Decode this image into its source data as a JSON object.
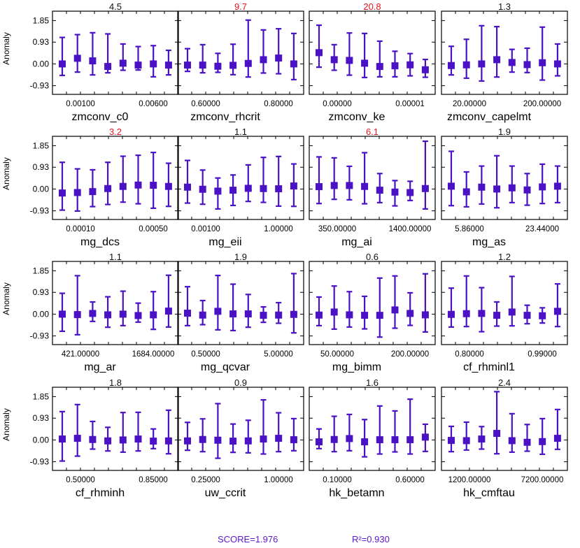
{
  "chart_data": {
    "type": "errorbar",
    "ylabel": "Anomaly",
    "y_ticks": [
      "1.85",
      "0.93",
      "0.00",
      "-0.93"
    ],
    "y_tick_values": [
      1.85,
      0.93,
      0.0,
      -0.93
    ],
    "ylim": [
      -1.3,
      2.25
    ],
    "grid": false,
    "marker_color": "#4a12c4",
    "highlight_color": "#e8141e",
    "normal_color": "#111111",
    "panels": [
      {
        "name": "zmconv_c0",
        "score": "4.5",
        "highlight": false,
        "x_ticks": [
          "0.00100",
          "0.00600"
        ],
        "points": [
          [
            0.0,
            -0.49,
            1.13
          ],
          [
            0.24,
            -0.35,
            1.25
          ],
          [
            0.13,
            -0.47,
            1.33
          ],
          [
            -0.11,
            -0.38,
            1.28
          ],
          [
            0.03,
            -0.27,
            0.85
          ],
          [
            -0.05,
            -0.26,
            0.74
          ],
          [
            0.0,
            -0.55,
            0.78
          ],
          [
            -0.05,
            -0.47,
            0.58
          ]
        ]
      },
      {
        "name": "zmconv_rhcrit",
        "score": "9.7",
        "highlight": true,
        "x_ticks": [
          "0.60000",
          "0.80000"
        ],
        "points": [
          [
            -0.05,
            -0.32,
            0.65
          ],
          [
            -0.05,
            -0.38,
            0.82
          ],
          [
            -0.1,
            -0.36,
            0.45
          ],
          [
            -0.06,
            -0.46,
            0.84
          ],
          [
            0.02,
            -0.56,
            1.87
          ],
          [
            0.18,
            -0.39,
            1.45
          ],
          [
            0.25,
            -0.42,
            1.5
          ],
          [
            0.0,
            -0.67,
            1.3
          ]
        ]
      },
      {
        "name": "zmconv_ke",
        "score": "20.8",
        "highlight": true,
        "x_ticks": [
          "0.00000",
          "0.00001"
        ],
        "points": [
          [
            0.48,
            -0.14,
            1.65
          ],
          [
            0.18,
            -0.27,
            0.82
          ],
          [
            0.15,
            -0.48,
            1.32
          ],
          [
            0.03,
            -0.58,
            1.3
          ],
          [
            -0.11,
            -0.55,
            0.97
          ],
          [
            -0.08,
            -0.55,
            0.54
          ],
          [
            -0.04,
            -0.51,
            0.44
          ],
          [
            -0.25,
            -0.57,
            0.19
          ]
        ]
      },
      {
        "name": "zmconv_capelmt",
        "score": "1.3",
        "highlight": false,
        "x_ticks": [
          "20.00000",
          "200.00000"
        ],
        "points": [
          [
            -0.07,
            -0.47,
            0.75
          ],
          [
            -0.04,
            -0.61,
            1.05
          ],
          [
            0.0,
            -0.73,
            1.63
          ],
          [
            0.18,
            -0.56,
            1.59
          ],
          [
            0.06,
            -0.35,
            0.62
          ],
          [
            -0.03,
            -0.37,
            0.67
          ],
          [
            0.05,
            -0.69,
            1.57
          ],
          [
            0.0,
            -0.51,
            0.85
          ]
        ]
      },
      {
        "name": "mg_dcs",
        "score": "3.2",
        "highlight": true,
        "x_ticks": [
          "0.00010",
          "0.00050"
        ],
        "points": [
          [
            -0.17,
            -0.9,
            1.14
          ],
          [
            -0.15,
            -0.94,
            0.86
          ],
          [
            -0.11,
            -0.75,
            0.82
          ],
          [
            0.02,
            -0.66,
            1.14
          ],
          [
            0.11,
            -0.56,
            1.4
          ],
          [
            0.17,
            -0.63,
            1.44
          ],
          [
            0.16,
            -0.82,
            1.56
          ],
          [
            0.11,
            -0.74,
            1.1
          ]
        ]
      },
      {
        "name": "mg_eii",
        "score": "1.1",
        "highlight": false,
        "x_ticks": [
          "0.00100",
          "1.00000"
        ],
        "points": [
          [
            0.08,
            -0.6,
            1.22
          ],
          [
            -0.01,
            -0.65,
            0.81
          ],
          [
            -0.09,
            -0.85,
            0.47
          ],
          [
            -0.05,
            -0.7,
            0.6
          ],
          [
            0.03,
            -0.53,
            1.03
          ],
          [
            0.02,
            -0.57,
            1.35
          ],
          [
            0.01,
            -0.73,
            1.39
          ],
          [
            0.13,
            -0.74,
            1.07
          ]
        ]
      },
      {
        "name": "mg_ai",
        "score": "6.1",
        "highlight": true,
        "x_ticks": [
          "350.00000",
          "1400.00000"
        ],
        "points": [
          [
            0.1,
            -0.62,
            1.37
          ],
          [
            0.15,
            -0.44,
            1.33
          ],
          [
            0.15,
            -0.46,
            0.97
          ],
          [
            0.11,
            -0.63,
            1.55
          ],
          [
            -0.05,
            -0.58,
            0.66
          ],
          [
            -0.13,
            -0.72,
            0.36
          ],
          [
            -0.15,
            -0.49,
            0.33
          ],
          [
            0.02,
            -0.85,
            2.04
          ]
        ]
      },
      {
        "name": "mg_as",
        "score": "1.9",
        "highlight": false,
        "x_ticks": [
          "5.86000",
          "23.44000"
        ],
        "points": [
          [
            0.12,
            -0.71,
            1.61
          ],
          [
            -0.12,
            -0.76,
            0.73
          ],
          [
            0.08,
            -0.64,
            0.98
          ],
          [
            0.0,
            -0.8,
            1.42
          ],
          [
            0.05,
            -0.58,
            0.98
          ],
          [
            -0.04,
            -0.69,
            0.66
          ],
          [
            0.09,
            -0.62,
            1.06
          ],
          [
            0.12,
            -0.58,
            0.98
          ]
        ]
      },
      {
        "name": "mg_ar",
        "score": "1.1",
        "highlight": false,
        "x_ticks": [
          "421.00000",
          "1684.00000"
        ],
        "points": [
          [
            0.0,
            -0.73,
            0.89
          ],
          [
            -0.02,
            -0.88,
            1.64
          ],
          [
            0.03,
            -0.31,
            0.52
          ],
          [
            -0.03,
            -0.56,
            0.74
          ],
          [
            0.0,
            -0.49,
            0.98
          ],
          [
            -0.06,
            -0.34,
            0.47
          ],
          [
            -0.03,
            -0.65,
            0.96
          ],
          [
            0.13,
            -0.55,
            1.66
          ]
        ]
      },
      {
        "name": "mg_qcvar",
        "score": "1.9",
        "highlight": false,
        "x_ticks": [
          "0.50000",
          "5.00000"
        ],
        "points": [
          [
            0.04,
            -0.49,
            1.17
          ],
          [
            -0.04,
            -0.45,
            0.58
          ],
          [
            0.12,
            -0.67,
            1.65
          ],
          [
            0.01,
            -0.7,
            1.28
          ],
          [
            0.01,
            -0.56,
            0.84
          ],
          [
            -0.05,
            -0.35,
            0.31
          ],
          [
            -0.04,
            -0.39,
            0.49
          ],
          [
            -0.01,
            -0.8,
            1.73
          ]
        ]
      },
      {
        "name": "mg_bimm",
        "score": "0.6",
        "highlight": false,
        "x_ticks": [
          "50.00000",
          "200.00000"
        ],
        "points": [
          [
            -0.04,
            -0.49,
            0.73
          ],
          [
            0.09,
            -0.64,
            1.2
          ],
          [
            -0.03,
            -0.55,
            0.96
          ],
          [
            -0.05,
            -0.63,
            0.76
          ],
          [
            -0.05,
            -0.98,
            1.54
          ],
          [
            0.18,
            -0.6,
            1.63
          ],
          [
            0.03,
            -0.48,
            0.91
          ],
          [
            -0.03,
            -0.76,
            1.72
          ]
        ]
      },
      {
        "name": "cf_rhminl1",
        "score": "1.2",
        "highlight": false,
        "x_ticks": [
          "0.80000",
          "0.99000"
        ],
        "points": [
          [
            -0.01,
            -0.55,
            1.11
          ],
          [
            0.02,
            -0.53,
            1.63
          ],
          [
            0.03,
            -0.75,
            1.13
          ],
          [
            -0.05,
            -0.51,
            0.52
          ],
          [
            0.09,
            -0.5,
            1.61
          ],
          [
            -0.05,
            -0.41,
            0.38
          ],
          [
            -0.07,
            -0.38,
            0.27
          ],
          [
            0.12,
            -0.53,
            1.29
          ]
        ]
      },
      {
        "name": "cf_rhminh",
        "score": "1.8",
        "highlight": false,
        "x_ticks": [
          "0.50000",
          "0.85000"
        ],
        "points": [
          [
            0.04,
            -0.9,
            1.21
          ],
          [
            0.07,
            -0.69,
            1.51
          ],
          [
            0.02,
            -0.39,
            0.79
          ],
          [
            -0.04,
            -0.47,
            0.54
          ],
          [
            0.0,
            -0.52,
            1.17
          ],
          [
            0.04,
            -0.47,
            1.18
          ],
          [
            -0.05,
            -0.37,
            0.47
          ],
          [
            -0.04,
            -0.59,
            1.27
          ]
        ]
      },
      {
        "name": "uw_ccrit",
        "score": "0.9",
        "highlight": false,
        "x_ticks": [
          "0.25000",
          "1.00000"
        ],
        "points": [
          [
            -0.04,
            -0.44,
            0.75
          ],
          [
            0.02,
            -0.5,
            0.9
          ],
          [
            -0.01,
            -0.78,
            1.55
          ],
          [
            -0.05,
            -0.53,
            0.68
          ],
          [
            -0.04,
            -0.55,
            0.84
          ],
          [
            0.04,
            -0.6,
            1.71
          ],
          [
            0.07,
            -0.5,
            1.16
          ],
          [
            0.01,
            -0.46,
            0.91
          ]
        ]
      },
      {
        "name": "hk_betamn",
        "score": "1.6",
        "highlight": false,
        "x_ticks": [
          "0.10000",
          "0.60000"
        ],
        "points": [
          [
            -0.08,
            -0.37,
            0.47
          ],
          [
            0.02,
            -0.5,
            1.01
          ],
          [
            0.06,
            -0.46,
            1.09
          ],
          [
            -0.08,
            -0.72,
            0.87
          ],
          [
            0.01,
            -0.6,
            1.45
          ],
          [
            0.01,
            -0.51,
            1.24
          ],
          [
            0.01,
            -0.6,
            1.74
          ],
          [
            0.12,
            -0.49,
            0.67
          ]
        ]
      },
      {
        "name": "hk_cmftau",
        "score": "2.4",
        "highlight": false,
        "x_ticks": [
          "1200.00000",
          "7200.00000"
        ],
        "points": [
          [
            -0.02,
            -0.5,
            0.58
          ],
          [
            -0.03,
            -0.43,
            0.76
          ],
          [
            0.04,
            -0.39,
            0.57
          ],
          [
            0.28,
            -0.59,
            2.06
          ],
          [
            -0.03,
            -0.52,
            1.12
          ],
          [
            -0.1,
            -0.48,
            0.66
          ],
          [
            -0.07,
            -0.61,
            0.91
          ],
          [
            0.07,
            -0.4,
            1.3
          ]
        ]
      }
    ]
  },
  "footer": {
    "score_label": "SCORE=1.976",
    "r2_label": "R²=0.930"
  }
}
